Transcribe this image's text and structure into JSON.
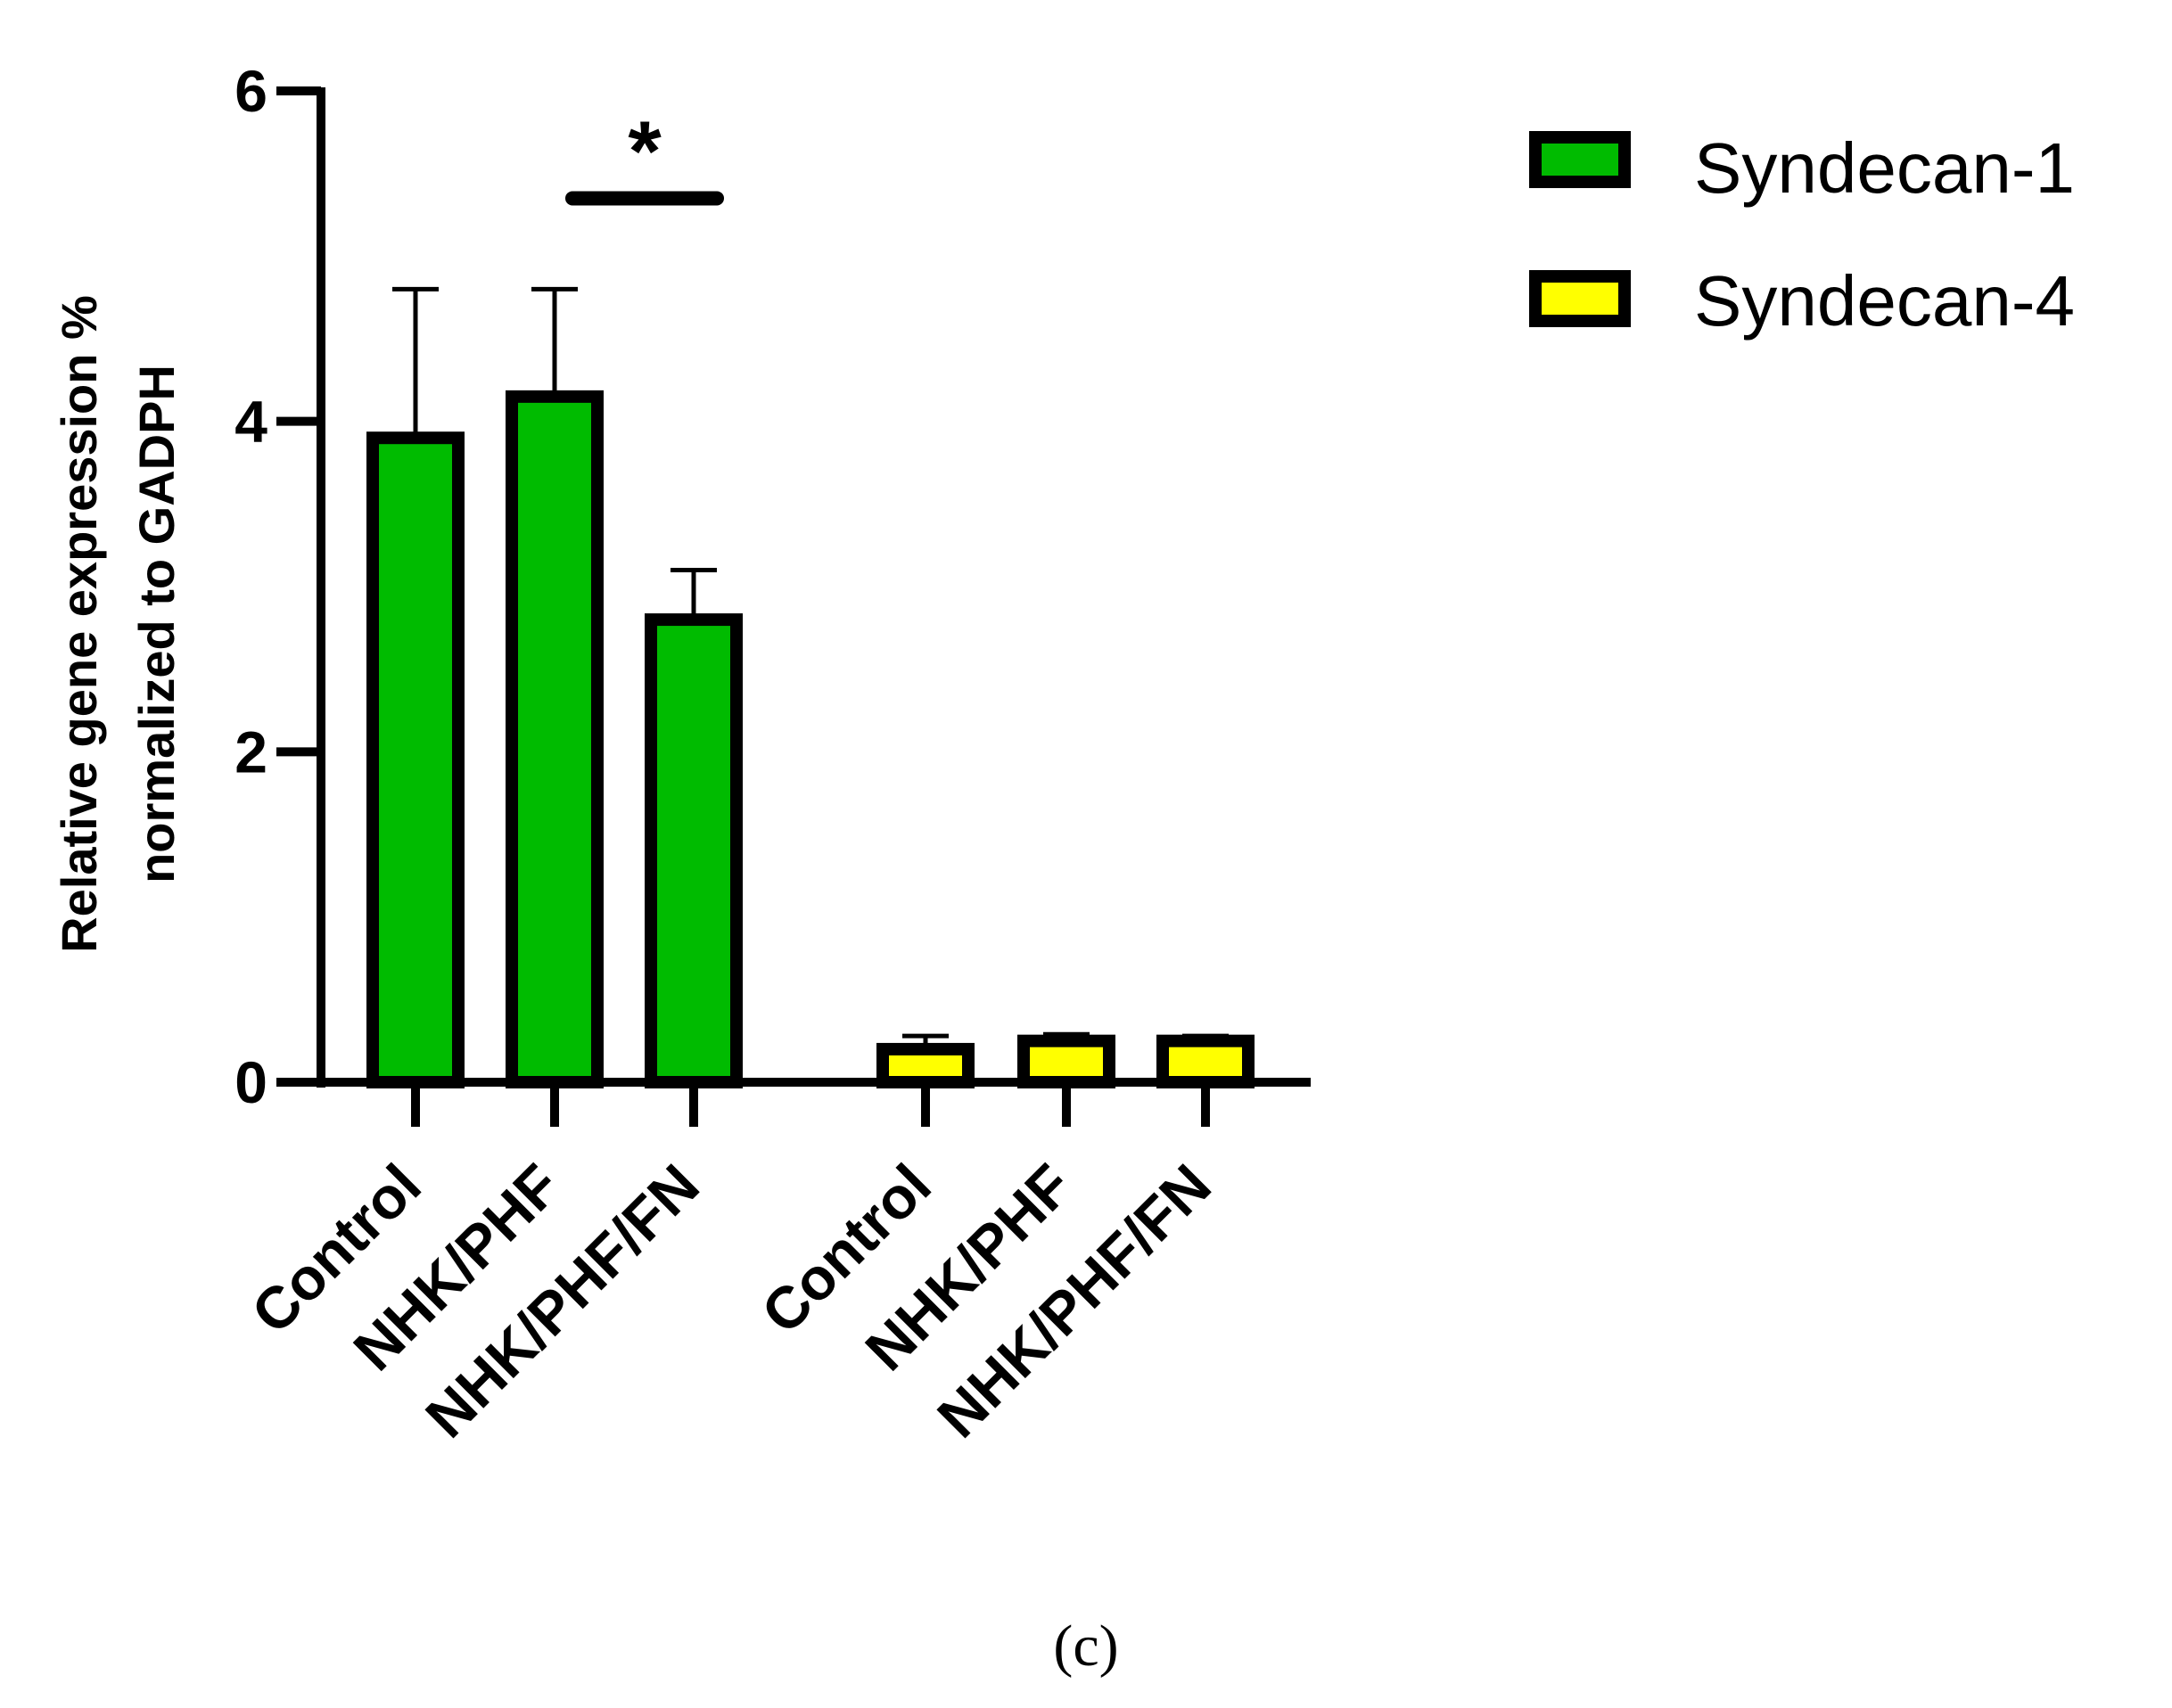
{
  "chart_data": {
    "type": "bar",
    "ylabel_lines": [
      "Relative gene expression %",
      "normalized to GADPH"
    ],
    "ylim": [
      0,
      6
    ],
    "yticks": [
      "0",
      "2",
      "4",
      "6"
    ],
    "groups": [
      {
        "series": "Syndecan-1",
        "color": "#00bb00",
        "categories": [
          "Control",
          "NHK/PHF",
          "NHK/PHF/FN"
        ],
        "values": [
          3.9,
          4.15,
          2.8
        ],
        "errors": [
          0.9,
          0.65,
          0.3
        ]
      },
      {
        "series": "Syndecan-4",
        "color": "#ffff00",
        "categories": [
          "Control",
          "NHK/PHF",
          "NHK/PHF/FN"
        ],
        "values": [
          0.2,
          0.25,
          0.25
        ],
        "errors": [
          0.08,
          0.04,
          0.03
        ]
      }
    ],
    "legend": [
      {
        "label": "Syndecan-1",
        "color": "#00bb00"
      },
      {
        "label": "Syndecan-4",
        "color": "#ffff00"
      }
    ],
    "legend_position": "top-right",
    "annotation": {
      "text": "*",
      "from_group": 0,
      "from_bar": 1,
      "to_bar": 2,
      "y": 5.35
    },
    "caption": "(c)"
  }
}
